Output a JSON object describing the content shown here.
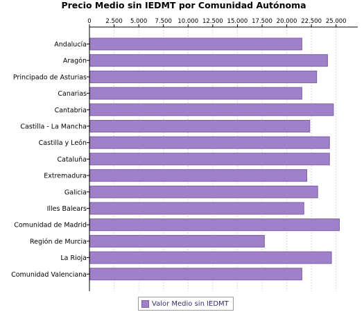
{
  "chart_data": {
    "type": "bar",
    "orientation": "horizontal",
    "title": "Precio Medio sin IEDMT por Comunidad Autónoma",
    "xlim": [
      0,
      27200
    ],
    "x_ticks": [
      "0",
      "2.500",
      "5.000",
      "7.500",
      "10.000",
      "12.500",
      "15.000",
      "17.500",
      "20.000",
      "22.500",
      "25.000"
    ],
    "x_tick_values": [
      0,
      2500,
      5000,
      7500,
      10000,
      12500,
      15000,
      17500,
      20000,
      22500,
      25000
    ],
    "x_axis_position": "top",
    "grid": true,
    "legend_position": "bottom",
    "bar_color": "#a080c8",
    "bar_edge_color": "#7d5fa8",
    "categories": [
      "Andalucía",
      "Aragón",
      "Principado de Asturias",
      "Canarias",
      "Cantabria",
      "Castilla - La Mancha",
      "Castilla y León",
      "Cataluña",
      "Extremadura",
      "Galicia",
      "Illes Balears",
      "Comunidad de Madrid",
      "Región de Murcia",
      "La Rioja",
      "Comunidad Valenciana"
    ],
    "series": [
      {
        "name": "Valor Medio sin IEDMT",
        "values": [
          21500,
          24100,
          23000,
          21500,
          24700,
          22300,
          24300,
          24300,
          22000,
          23100,
          21700,
          25300,
          17700,
          24500,
          21500
        ]
      }
    ]
  }
}
